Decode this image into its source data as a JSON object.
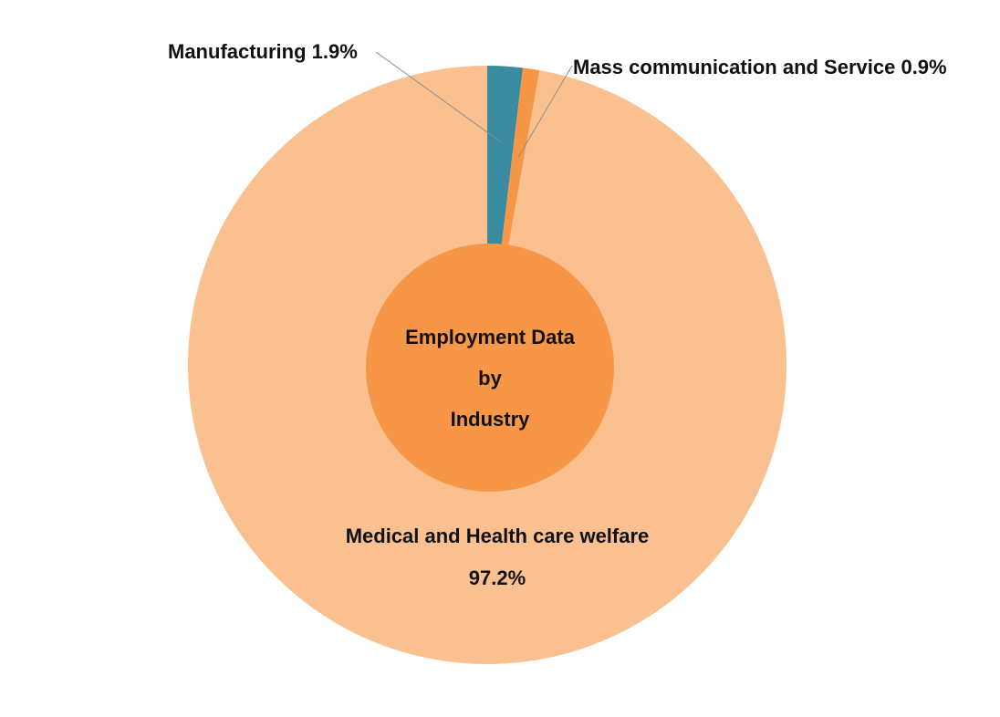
{
  "chart_data": {
    "type": "pie",
    "title": "Employment Data by Industry",
    "title_lines": [
      "Employment Data",
      "by",
      "Industry"
    ],
    "slices": [
      {
        "label": "Manufacturing",
        "value": 1.9,
        "value_text": "1.9%",
        "display": "Manufacturing 1.9%",
        "color": "#3a8aa0"
      },
      {
        "label": "Mass communication and Service",
        "value": 0.9,
        "value_text": "0.9%",
        "display": "Mass communication and Service 0.9%",
        "color": "#f79646"
      },
      {
        "label": "Medical and Health care welfare",
        "value": 97.2,
        "value_text": "97.2%",
        "display": "Medical and Health care welfare",
        "color": "#fac090"
      }
    ],
    "center_circle_color": "#f79646",
    "legend": "none",
    "start_angle": "12 o'clock, clockwise"
  }
}
